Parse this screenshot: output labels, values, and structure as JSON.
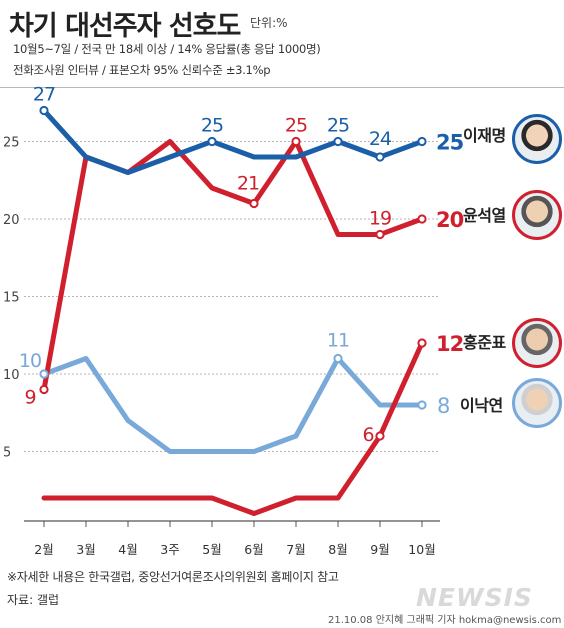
{
  "header": {
    "title": "차기 대선주자 선호도",
    "unit": "단위:%",
    "line1": "10월5~7일 / 전국 만 18세 이상 / 14% 응답률(총 응답 1000명)",
    "line2": "전화조사원 인터뷰 / 표본오차 95% 신뢰수준 ±3.1%p"
  },
  "footer": {
    "note": "※자세한 내용은 한국갤럽, 중앙선거여론조사의위원회 홈페이지 참고",
    "source": "자료: 갤럽",
    "credit": "21.10.08 안지혜 그래픽 기자 hokma@newsis.com",
    "logo": "NEWSIS"
  },
  "chart_data": {
    "type": "line",
    "categories": [
      "2월",
      "3월",
      "4월",
      "3주",
      "5월",
      "6월",
      "7월",
      "8월",
      "9월",
      "10월"
    ],
    "ylim": [
      0,
      28
    ],
    "yticks": [
      5,
      10,
      15,
      20,
      25
    ],
    "grid": true,
    "series": [
      {
        "name": "이재명",
        "color": "#1a5fa8",
        "values": [
          27,
          24,
          23,
          24,
          25,
          24,
          24,
          25,
          24,
          25
        ],
        "labels": [
          {
            "i": 0,
            "text": "27"
          },
          {
            "i": 4,
            "text": "25"
          },
          {
            "i": 7,
            "text": "25"
          },
          {
            "i": 8,
            "text": "24"
          }
        ],
        "end_label": "25"
      },
      {
        "name": "윤석열",
        "color": "#d01f2d",
        "values": [
          9,
          24,
          23,
          25,
          22,
          21,
          25,
          19,
          19,
          20
        ],
        "labels": [
          {
            "i": 0,
            "text": "9"
          },
          {
            "i": 5,
            "text": "21"
          },
          {
            "i": 6,
            "text": "25"
          },
          {
            "i": 8,
            "text": "19"
          }
        ],
        "end_label": "20"
      },
      {
        "name": "홍준표",
        "color": "#d01f2d",
        "values": [
          2,
          2,
          2,
          2,
          2,
          1,
          2,
          2,
          6,
          12
        ],
        "labels": [
          {
            "i": 8,
            "text": "6"
          }
        ],
        "end_label": "12"
      },
      {
        "name": "이낙연",
        "color": "#78a9d9",
        "values": [
          10,
          11,
          7,
          5,
          5,
          5,
          6,
          11,
          8,
          8
        ],
        "labels": [
          {
            "i": 0,
            "text": "10"
          },
          {
            "i": 7,
            "text": "11"
          }
        ],
        "end_label": "8"
      }
    ]
  }
}
